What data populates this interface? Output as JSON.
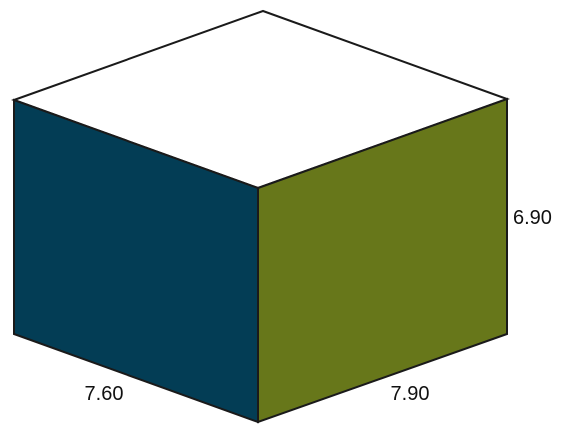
{
  "diagram": {
    "type": "rectangular-prism",
    "dimensions": {
      "left_edge": 7.6,
      "right_edge": 7.9,
      "height": 6.9
    },
    "labels": {
      "left_edge": "7.60",
      "right_edge": "7.90",
      "height": "6.90"
    },
    "colors": {
      "top_face": "#ffffff",
      "left_face": "#033d55",
      "right_face": "#67771a",
      "edge": "#1a1a1a"
    }
  }
}
